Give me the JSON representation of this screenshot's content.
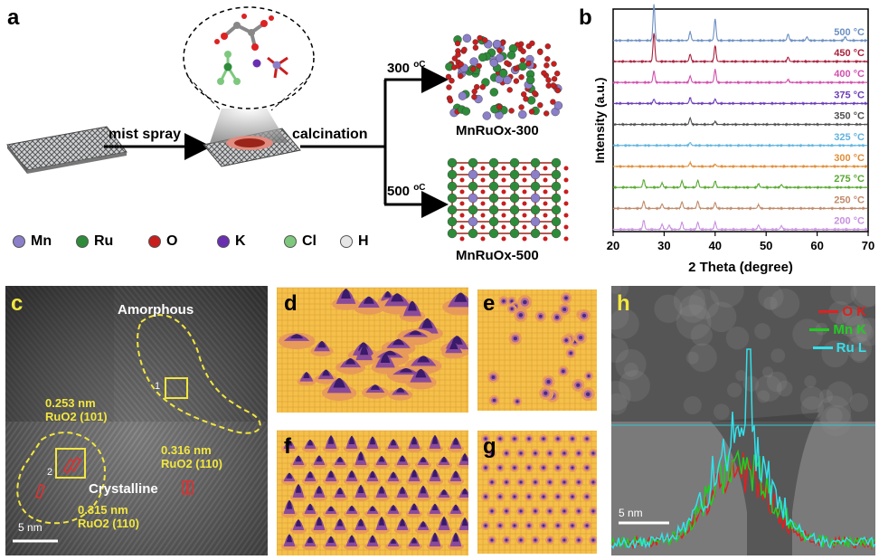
{
  "panels": {
    "a": {
      "letter": "a",
      "mist_spray": "mist spray",
      "calcination": "calcination",
      "temp300": "300",
      "temp500": "500",
      "deg_unit": "oC",
      "product300": "MnRuOx-300",
      "product500": "MnRuOx-500",
      "legend": [
        {
          "label": "Mn",
          "color": "#8a7fc8"
        },
        {
          "label": "Ru",
          "color": "#2e8b3a"
        },
        {
          "label": "O",
          "color": "#c81e1e"
        },
        {
          "label": "K",
          "color": "#6a2fb0"
        },
        {
          "label": "Cl",
          "color": "#7ec87e"
        },
        {
          "label": "H",
          "color": "#e6e6e6"
        }
      ]
    },
    "b": {
      "letter": "b"
    },
    "c": {
      "letter": "c",
      "amorphous": "Amorphous",
      "crystalline": "Crystalline",
      "d1_value": "0.253 nm",
      "d1_phase": "RuO2 (101)",
      "d2_value": "0.316 nm",
      "d2_phase": "RuO2 (110)",
      "d3_value": "0.315 nm",
      "d3_phase": "RuO2 (110)",
      "box1": "1",
      "box2": "2",
      "scale": "5 nm"
    },
    "d": {
      "letter": "d"
    },
    "e": {
      "letter": "e"
    },
    "f": {
      "letter": "f"
    },
    "g": {
      "letter": "g"
    },
    "h": {
      "letter": "h",
      "legend": [
        {
          "label": "O K",
          "color": "#e02020"
        },
        {
          "label": "Mn K",
          "color": "#22cc22"
        },
        {
          "label": "Ru L",
          "color": "#33e0ea"
        }
      ],
      "scale": "5 nm"
    }
  },
  "chart_data": {
    "type": "line",
    "xlabel": "2 Theta (degree)",
    "ylabel": "Intensity (a.u.)",
    "xlim": [
      20,
      70
    ],
    "xticks": [
      20,
      30,
      40,
      50,
      60,
      70
    ],
    "unit": "°C",
    "series": [
      {
        "name": "500",
        "color": "#6b8fc2",
        "peaks": [
          [
            28.0,
            5.0
          ],
          [
            35.1,
            1.2
          ],
          [
            40.0,
            3.0
          ],
          [
            54.3,
            0.9
          ],
          [
            58.0,
            0.5
          ],
          [
            65.5,
            0.5
          ]
        ]
      },
      {
        "name": "450",
        "color": "#a8203c",
        "peaks": [
          [
            28.0,
            4.0
          ],
          [
            35.1,
            1.0
          ],
          [
            40.0,
            2.2
          ],
          [
            54.3,
            0.6
          ]
        ]
      },
      {
        "name": "400",
        "color": "#d24fae",
        "peaks": [
          [
            28.0,
            1.6
          ],
          [
            35.1,
            0.9
          ],
          [
            40.0,
            1.8
          ],
          [
            54.3,
            0.4
          ]
        ]
      },
      {
        "name": "375",
        "color": "#6b3db8",
        "peaks": [
          [
            28.0,
            0.6
          ],
          [
            35.1,
            0.8
          ],
          [
            40.0,
            0.6
          ]
        ]
      },
      {
        "name": "350",
        "color": "#505050",
        "peaks": [
          [
            35.1,
            0.9
          ],
          [
            40.0,
            0.4
          ]
        ]
      },
      {
        "name": "325",
        "color": "#5fb4e0",
        "peaks": [
          [
            35.1,
            0.4
          ]
        ]
      },
      {
        "name": "300",
        "color": "#e08e3a",
        "peaks": [
          [
            35.1,
            0.5
          ],
          [
            40.0,
            0.3
          ]
        ]
      },
      {
        "name": "275",
        "color": "#5aa832",
        "peaks": [
          [
            26.0,
            1.1
          ],
          [
            29.6,
            0.6
          ],
          [
            33.5,
            0.9
          ],
          [
            36.6,
            1.0
          ],
          [
            40.0,
            0.9
          ],
          [
            48.5,
            0.5
          ],
          [
            53.0,
            0.4
          ]
        ]
      },
      {
        "name": "250",
        "color": "#c08a6a",
        "peaks": [
          [
            26.0,
            1.0
          ],
          [
            29.6,
            0.6
          ],
          [
            33.5,
            0.9
          ],
          [
            36.6,
            1.0
          ],
          [
            40.0,
            0.8
          ],
          [
            48.5,
            0.5
          ]
        ]
      },
      {
        "name": "200",
        "color": "#c890e0",
        "peaks": [
          [
            26.0,
            1.3
          ],
          [
            29.6,
            0.7
          ],
          [
            31.0,
            0.6
          ],
          [
            33.5,
            1.0
          ],
          [
            36.6,
            1.0
          ],
          [
            40.0,
            1.0
          ],
          [
            48.5,
            0.6
          ],
          [
            53.0,
            0.5
          ]
        ]
      }
    ]
  }
}
